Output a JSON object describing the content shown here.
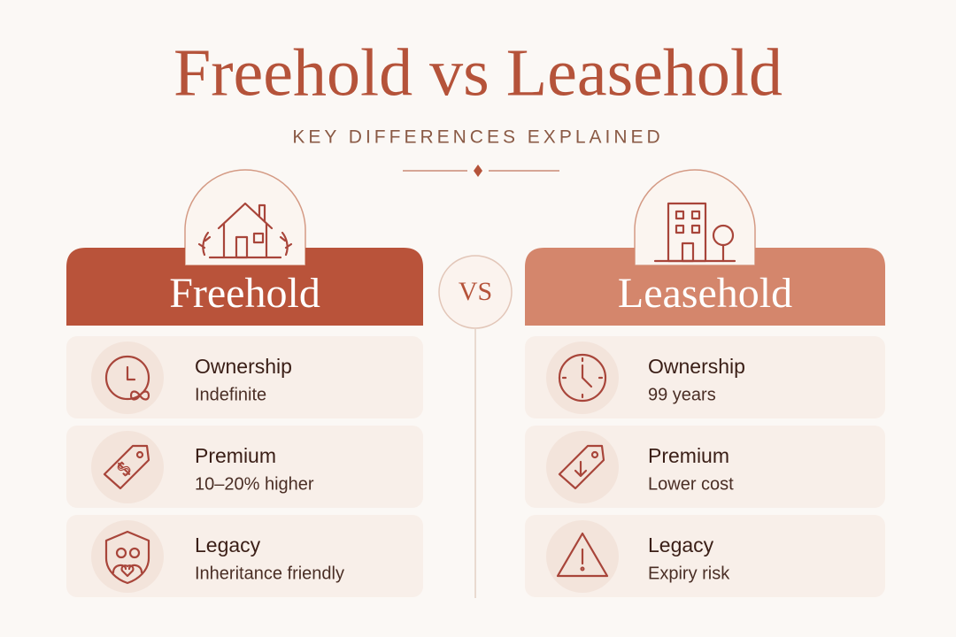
{
  "header": {
    "title": "Freehold vs Leasehold",
    "subtitle": "KEY DIFFERENCES EXPLAINED"
  },
  "vs": "VS",
  "columns": [
    {
      "name": "Freehold",
      "rows": [
        {
          "label": "Ownership",
          "value": "Indefinite"
        },
        {
          "label": "Premium",
          "value": "10–20% higher"
        },
        {
          "label": "Legacy",
          "value": "Inheritance friendly"
        }
      ]
    },
    {
      "name": "Leasehold",
      "rows": [
        {
          "label": "Ownership",
          "value": "99 years"
        },
        {
          "label": "Premium",
          "value": "Lower cost"
        },
        {
          "label": "Legacy",
          "value": "Expiry risk"
        }
      ]
    }
  ]
}
